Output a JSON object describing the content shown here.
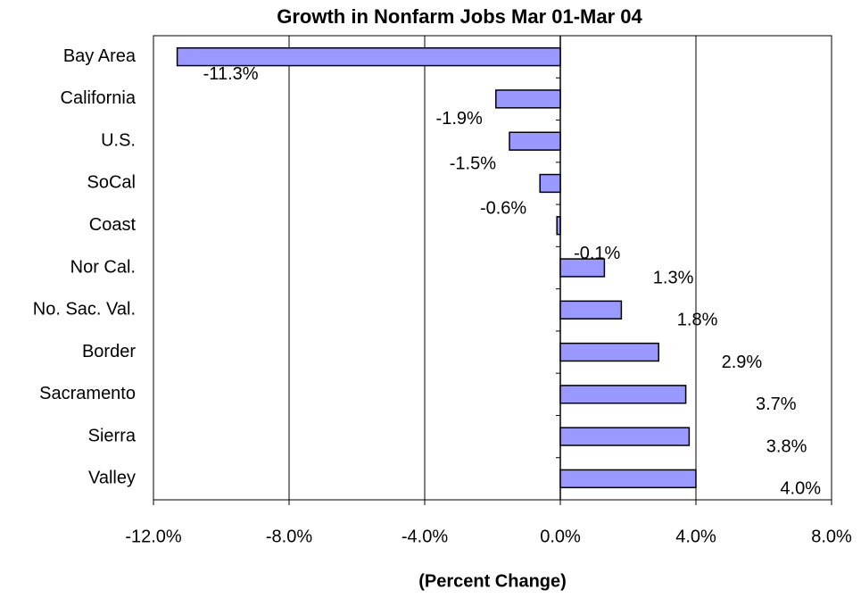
{
  "chart_data": {
    "type": "bar",
    "orientation": "horizontal",
    "title": "Growth in Nonfarm Jobs Mar 01-Mar 04",
    "x_label": "(Percent Change)",
    "categories": [
      "Bay Area",
      "California",
      "U.S.",
      "SoCal",
      "Coast",
      "Nor Cal.",
      "No. Sac. Val.",
      "Border",
      "Sacramento",
      "Sierra",
      "Valley"
    ],
    "values": [
      -11.3,
      -1.9,
      -1.5,
      -0.6,
      -0.1,
      1.3,
      1.8,
      2.9,
      3.7,
      3.8,
      4.0
    ],
    "value_labels": [
      "-11.3%",
      "-1.9%",
      "-1.5%",
      "-0.6%",
      "-0.1%",
      "1.3%",
      "1.8%",
      "2.9%",
      "3.7%",
      "3.8%",
      "4.0%"
    ],
    "color": "#9999ff",
    "xlim": [
      -12,
      8
    ],
    "xticks": [
      {
        "value": -12,
        "label": "-12.0%"
      },
      {
        "value": -8,
        "label": "-8.0%"
      },
      {
        "value": -4,
        "label": "-4.0%"
      },
      {
        "value": 0,
        "label": "0.0%"
      },
      {
        "value": 4,
        "label": "4.0%"
      },
      {
        "value": 8,
        "label": "8.0%"
      }
    ],
    "grid": true
  }
}
